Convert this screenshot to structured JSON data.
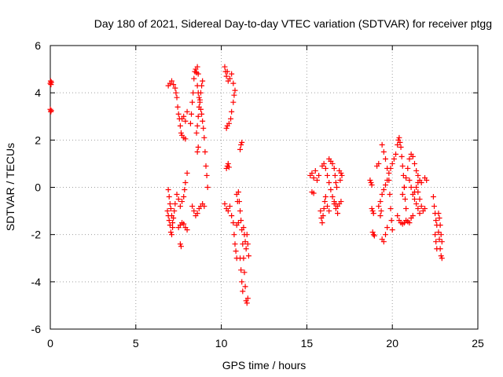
{
  "chart_data": {
    "type": "scatter",
    "title": "Day 180 of 2021, Sidereal Day-to-day VTEC variation (SDTVAR) for receiver ptgg",
    "xlabel": "GPS time / hours",
    "ylabel": "SDTVAR / TECUs",
    "xlim": [
      0,
      25
    ],
    "ylim": [
      -6,
      6
    ],
    "xticks": [
      "0",
      "5",
      "10",
      "15",
      "20",
      "25"
    ],
    "yticks": [
      "-6",
      "-4",
      "-2",
      "0",
      "2",
      "4",
      "6"
    ],
    "grid": true,
    "marker": "+",
    "series": [
      {
        "color": "#ff0000",
        "points": [
          [
            0.0,
            4.4
          ],
          [
            0.02,
            4.5
          ],
          [
            0.04,
            4.35
          ],
          [
            0.06,
            4.45
          ],
          [
            0.0,
            3.3
          ],
          [
            0.03,
            3.2
          ],
          [
            0.05,
            3.25
          ],
          [
            6.85,
            -1.0
          ],
          [
            6.9,
            -1.2
          ],
          [
            6.95,
            -1.4
          ],
          [
            7.0,
            -1.6
          ],
          [
            7.05,
            -1.9
          ],
          [
            7.1,
            -2.0
          ],
          [
            7.15,
            -1.7
          ],
          [
            7.2,
            -1.3
          ],
          [
            7.25,
            -1.0
          ],
          [
            7.3,
            -0.7
          ],
          [
            6.9,
            -0.1
          ],
          [
            6.95,
            -0.4
          ],
          [
            7.0,
            -0.7
          ],
          [
            7.05,
            -0.9
          ],
          [
            7.1,
            -1.2
          ],
          [
            7.15,
            -1.5
          ],
          [
            6.9,
            4.3
          ],
          [
            7.0,
            4.4
          ],
          [
            7.1,
            4.5
          ],
          [
            7.2,
            4.35
          ],
          [
            7.3,
            4.2
          ],
          [
            7.35,
            4.0
          ],
          [
            7.4,
            3.8
          ],
          [
            7.45,
            3.4
          ],
          [
            7.5,
            3.1
          ],
          [
            7.55,
            2.9
          ],
          [
            7.6,
            2.6
          ],
          [
            7.65,
            2.3
          ],
          [
            7.7,
            2.2
          ],
          [
            7.8,
            2.1
          ],
          [
            7.9,
            2.05
          ],
          [
            7.4,
            -0.3
          ],
          [
            7.5,
            -0.5
          ],
          [
            7.6,
            -0.8
          ],
          [
            7.7,
            -0.6
          ],
          [
            7.8,
            -0.4
          ],
          [
            7.85,
            -0.1
          ],
          [
            7.9,
            0.2
          ],
          [
            8.0,
            0.6
          ],
          [
            7.5,
            -1.7
          ],
          [
            7.6,
            -1.6
          ],
          [
            7.7,
            -1.5
          ],
          [
            7.8,
            -1.55
          ],
          [
            7.9,
            -1.7
          ],
          [
            8.0,
            -1.8
          ],
          [
            7.6,
            -2.4
          ],
          [
            7.65,
            -2.5
          ],
          [
            7.7,
            2.9
          ],
          [
            7.8,
            3.0
          ],
          [
            7.9,
            2.8
          ],
          [
            8.0,
            3.2
          ],
          [
            8.2,
            2.7
          ],
          [
            8.25,
            3.1
          ],
          [
            8.3,
            3.6
          ],
          [
            8.35,
            4.0
          ],
          [
            8.4,
            4.6
          ],
          [
            8.45,
            4.9
          ],
          [
            8.5,
            5.0
          ],
          [
            8.55,
            4.85
          ],
          [
            8.6,
            5.1
          ],
          [
            8.65,
            4.8
          ],
          [
            8.3,
            -0.8
          ],
          [
            8.4,
            -1.0
          ],
          [
            8.5,
            -1.2
          ],
          [
            8.6,
            -1.1
          ],
          [
            8.7,
            -0.9
          ],
          [
            8.8,
            -0.8
          ],
          [
            8.9,
            -0.7
          ],
          [
            9.0,
            -0.8
          ],
          [
            8.6,
            4.3
          ],
          [
            8.65,
            4.0
          ],
          [
            8.7,
            3.8
          ],
          [
            8.75,
            3.6
          ],
          [
            8.8,
            3.3
          ],
          [
            8.85,
            3.1
          ],
          [
            8.9,
            2.8
          ],
          [
            8.95,
            2.5
          ],
          [
            9.0,
            2.1
          ],
          [
            9.05,
            1.5
          ],
          [
            9.1,
            0.9
          ],
          [
            9.15,
            0.5
          ],
          [
            9.2,
            0.0
          ],
          [
            8.6,
            1.5
          ],
          [
            8.65,
            1.7
          ],
          [
            8.55,
            2.3
          ],
          [
            8.6,
            2.6
          ],
          [
            8.65,
            3.0
          ],
          [
            8.7,
            3.4
          ],
          [
            8.75,
            3.7
          ],
          [
            8.8,
            4.0
          ],
          [
            8.85,
            4.3
          ],
          [
            8.9,
            4.5
          ],
          [
            10.2,
            5.1
          ],
          [
            10.25,
            4.9
          ],
          [
            10.3,
            4.7
          ],
          [
            10.35,
            4.9
          ],
          [
            10.4,
            4.5
          ],
          [
            10.5,
            4.6
          ],
          [
            10.6,
            4.8
          ],
          [
            10.7,
            4.4
          ],
          [
            10.3,
            2.5
          ],
          [
            10.35,
            2.6
          ],
          [
            10.45,
            2.7
          ],
          [
            10.55,
            2.9
          ],
          [
            10.6,
            3.2
          ],
          [
            10.7,
            3.6
          ],
          [
            10.75,
            3.9
          ],
          [
            10.8,
            4.1
          ],
          [
            10.3,
            0.8
          ],
          [
            10.35,
            0.9
          ],
          [
            10.4,
            1.0
          ],
          [
            10.45,
            0.85
          ],
          [
            10.2,
            -0.7
          ],
          [
            10.3,
            -0.9
          ],
          [
            10.4,
            -1.0
          ],
          [
            10.5,
            -0.8
          ],
          [
            10.6,
            -1.2
          ],
          [
            10.7,
            -1.5
          ],
          [
            10.75,
            -2.0
          ],
          [
            10.8,
            -2.4
          ],
          [
            10.85,
            -2.7
          ],
          [
            10.9,
            -3.0
          ],
          [
            10.9,
            -1.6
          ],
          [
            11.0,
            -1.5
          ],
          [
            10.9,
            -0.3
          ],
          [
            10.95,
            -0.6
          ],
          [
            11.0,
            -0.2
          ],
          [
            11.05,
            -0.6
          ],
          [
            11.1,
            -1.0
          ],
          [
            11.15,
            -1.4
          ],
          [
            11.2,
            -1.8
          ],
          [
            11.25,
            -2.4
          ],
          [
            11.3,
            -3.0
          ],
          [
            11.35,
            -3.6
          ],
          [
            11.4,
            -4.2
          ],
          [
            11.45,
            -4.8
          ],
          [
            11.5,
            -4.9
          ],
          [
            11.55,
            -4.7
          ],
          [
            11.1,
            -3.0
          ],
          [
            11.15,
            -3.5
          ],
          [
            11.2,
            -4.0
          ],
          [
            11.25,
            -4.4
          ],
          [
            11.3,
            -1.7
          ],
          [
            11.35,
            -2.0
          ],
          [
            11.4,
            -2.3
          ],
          [
            11.45,
            -2.6
          ],
          [
            11.5,
            -2.0
          ],
          [
            11.55,
            -2.4
          ],
          [
            11.6,
            -2.9
          ],
          [
            11.1,
            1.6
          ],
          [
            11.15,
            1.8
          ],
          [
            11.2,
            1.9
          ],
          [
            15.2,
            0.5
          ],
          [
            15.3,
            0.6
          ],
          [
            15.4,
            0.4
          ],
          [
            15.5,
            0.7
          ],
          [
            15.6,
            0.3
          ],
          [
            15.7,
            0.5
          ],
          [
            15.3,
            -0.2
          ],
          [
            15.4,
            -0.25
          ],
          [
            15.8,
            -1.0
          ],
          [
            15.85,
            -1.3
          ],
          [
            15.9,
            -1.5
          ],
          [
            15.95,
            -1.2
          ],
          [
            16.0,
            -0.9
          ],
          [
            16.05,
            -0.6
          ],
          [
            16.1,
            -0.4
          ],
          [
            16.2,
            -0.8
          ],
          [
            16.3,
            -1.0
          ],
          [
            15.9,
            0.9
          ],
          [
            16.0,
            1.0
          ],
          [
            16.1,
            0.8
          ],
          [
            16.2,
            0.5
          ],
          [
            16.3,
            0.2
          ],
          [
            16.4,
            -0.1
          ],
          [
            16.5,
            -0.4
          ],
          [
            16.6,
            -0.7
          ],
          [
            16.7,
            -0.9
          ],
          [
            16.8,
            -1.1
          ],
          [
            16.3,
            1.2
          ],
          [
            16.4,
            1.1
          ],
          [
            16.5,
            1.0
          ],
          [
            16.6,
            0.8
          ],
          [
            16.65,
            0.5
          ],
          [
            16.7,
            0.2
          ],
          [
            16.75,
            0.0
          ],
          [
            16.6,
            -0.6
          ],
          [
            16.7,
            -0.7
          ],
          [
            16.8,
            -0.8
          ],
          [
            16.9,
            -0.7
          ],
          [
            17.0,
            -0.6
          ],
          [
            16.9,
            0.7
          ],
          [
            17.0,
            0.6
          ],
          [
            17.05,
            0.5
          ],
          [
            16.95,
            0.3
          ],
          [
            18.8,
            -0.9
          ],
          [
            18.85,
            -1.0
          ],
          [
            18.9,
            -1.1
          ],
          [
            18.85,
            -1.9
          ],
          [
            18.9,
            -2.0
          ],
          [
            18.95,
            -2.05
          ],
          [
            18.7,
            0.3
          ],
          [
            18.75,
            0.2
          ],
          [
            18.8,
            0.1
          ],
          [
            19.1,
            0.9
          ],
          [
            19.2,
            1.0
          ],
          [
            19.2,
            -0.8
          ],
          [
            19.3,
            -0.6
          ],
          [
            19.4,
            -0.3
          ],
          [
            19.5,
            -0.1
          ],
          [
            19.6,
            0.1
          ],
          [
            19.7,
            0.3
          ],
          [
            19.8,
            0.6
          ],
          [
            19.9,
            0.8
          ],
          [
            20.0,
            1.0
          ],
          [
            20.1,
            1.2
          ],
          [
            20.2,
            1.4
          ],
          [
            19.3,
            -1.2
          ],
          [
            19.35,
            -1.0
          ],
          [
            19.4,
            1.8
          ],
          [
            19.5,
            1.5
          ],
          [
            19.6,
            1.2
          ],
          [
            19.7,
            0.8
          ],
          [
            19.8,
            0.3
          ],
          [
            19.85,
            -0.3
          ],
          [
            19.9,
            -0.9
          ],
          [
            19.95,
            -1.4
          ],
          [
            20.0,
            -1.8
          ],
          [
            19.4,
            -2.2
          ],
          [
            19.5,
            -2.3
          ],
          [
            19.6,
            -2.0
          ],
          [
            19.7,
            -1.7
          ],
          [
            20.3,
            1.8
          ],
          [
            20.35,
            2.0
          ],
          [
            20.4,
            2.1
          ],
          [
            20.45,
            1.9
          ],
          [
            20.5,
            1.7
          ],
          [
            20.55,
            1.3
          ],
          [
            20.6,
            0.9
          ],
          [
            20.65,
            0.5
          ],
          [
            20.7,
            0.0
          ],
          [
            20.75,
            -0.5
          ],
          [
            20.8,
            -0.9
          ],
          [
            20.3,
            -1.2
          ],
          [
            20.4,
            -1.4
          ],
          [
            20.5,
            -1.5
          ],
          [
            20.6,
            -1.55
          ],
          [
            20.7,
            -1.5
          ],
          [
            20.8,
            -1.4
          ],
          [
            20.9,
            -1.45
          ],
          [
            21.0,
            -1.5
          ],
          [
            21.1,
            -1.3
          ],
          [
            21.2,
            -1.2
          ],
          [
            20.6,
            -0.3
          ],
          [
            20.7,
            0.0
          ],
          [
            20.8,
            0.4
          ],
          [
            20.9,
            0.8
          ],
          [
            21.0,
            1.2
          ],
          [
            21.1,
            1.4
          ],
          [
            21.2,
            1.3
          ],
          [
            21.3,
            1.0
          ],
          [
            21.4,
            0.7
          ],
          [
            21.5,
            0.5
          ],
          [
            21.6,
            0.3
          ],
          [
            21.7,
            0.2
          ],
          [
            21.0,
            0.3
          ],
          [
            21.1,
            0.0
          ],
          [
            21.2,
            -0.3
          ],
          [
            21.3,
            -0.5
          ],
          [
            21.4,
            -0.7
          ],
          [
            21.5,
            -0.9
          ],
          [
            21.6,
            -1.1
          ],
          [
            21.3,
            -0.2
          ],
          [
            21.4,
            0.0
          ],
          [
            21.5,
            0.2
          ],
          [
            21.5,
            -0.2
          ],
          [
            21.6,
            -0.5
          ],
          [
            21.7,
            -0.8
          ],
          [
            21.8,
            -1.0
          ],
          [
            21.9,
            -0.9
          ],
          [
            22.0,
            0.3
          ],
          [
            21.9,
            0.4
          ],
          [
            22.4,
            -0.4
          ],
          [
            22.45,
            -0.8
          ],
          [
            22.5,
            -1.1
          ],
          [
            22.55,
            -1.4
          ],
          [
            22.6,
            -1.6
          ],
          [
            22.7,
            -1.9
          ],
          [
            22.75,
            -2.2
          ],
          [
            22.8,
            -2.6
          ],
          [
            22.85,
            -2.9
          ],
          [
            22.9,
            -3.0
          ],
          [
            22.5,
            -2.0
          ],
          [
            22.55,
            -2.3
          ],
          [
            22.6,
            -2.6
          ],
          [
            22.7,
            -1.1
          ],
          [
            22.75,
            -1.3
          ],
          [
            22.8,
            -1.6
          ],
          [
            22.85,
            -2.0
          ],
          [
            22.9,
            -2.3
          ]
        ]
      }
    ]
  }
}
